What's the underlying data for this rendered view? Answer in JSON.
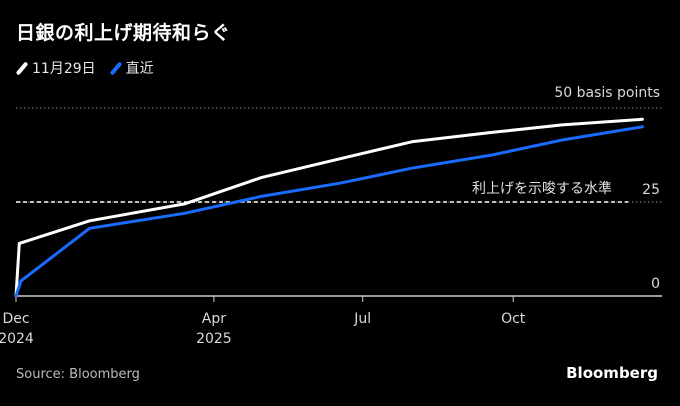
{
  "title": "日銀の利上げ期待和らぐ",
  "legend": [
    {
      "label": "11月29日",
      "color": "#ffffff"
    },
    {
      "label": "直近",
      "color": "#1a6bff"
    }
  ],
  "source": "Source: Bloomberg",
  "brand": "Bloomberg",
  "chart_data": {
    "type": "line",
    "title": "日銀の利上げ期待和らぐ",
    "x_axis_type": "date",
    "xlim": [
      "2024-12-01",
      "2025-12-31"
    ],
    "ylim": [
      0,
      50
    ],
    "y_ticks": [
      {
        "value": 0,
        "label": "0"
      },
      {
        "value": 25,
        "label": "25"
      },
      {
        "value": 50,
        "label": "50 basis points"
      }
    ],
    "x_ticks": [
      {
        "date": "2024-12-01",
        "label": "Dec",
        "sublabel": "2024"
      },
      {
        "date": "2025-04-01",
        "label": "Apr",
        "sublabel": "2025"
      },
      {
        "date": "2025-07-01",
        "label": "Jul",
        "sublabel": ""
      },
      {
        "date": "2025-10-01",
        "label": "Oct",
        "sublabel": ""
      }
    ],
    "reference_line": {
      "value": 25,
      "label": "利上げを示唆する水準"
    },
    "grid": "horizontal dotted at tick values",
    "series": [
      {
        "name": "11月29日",
        "color": "#ffffff",
        "points": [
          [
            "2024-12-01",
            0
          ],
          [
            "2024-12-03",
            14
          ],
          [
            "2025-01-15",
            20
          ],
          [
            "2025-03-14",
            24.5
          ],
          [
            "2025-04-30",
            31.5
          ],
          [
            "2025-06-17",
            36.5
          ],
          [
            "2025-07-31",
            41
          ],
          [
            "2025-09-18",
            43.5
          ],
          [
            "2025-10-31",
            45.5
          ],
          [
            "2025-12-19",
            47
          ]
        ]
      },
      {
        "name": "直近",
        "color": "#1a6bff",
        "points": [
          [
            "2024-12-01",
            0
          ],
          [
            "2024-12-04",
            4
          ],
          [
            "2025-01-15",
            18
          ],
          [
            "2025-03-14",
            22
          ],
          [
            "2025-04-30",
            26.5
          ],
          [
            "2025-06-17",
            30
          ],
          [
            "2025-07-31",
            34
          ],
          [
            "2025-09-18",
            37.5
          ],
          [
            "2025-10-31",
            41.5
          ],
          [
            "2025-12-19",
            45
          ]
        ]
      }
    ]
  }
}
